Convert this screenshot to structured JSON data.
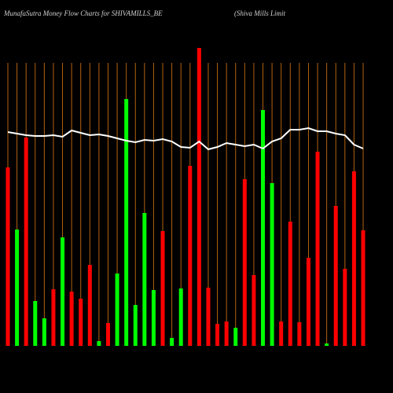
{
  "chart_data": {
    "type": "bar",
    "title": "MunafaSutra  Money Flow  Charts for SHIVAMILLS_BE",
    "subtitle": "(Shiva  Mills Limit",
    "categories": [
      null,
      null,
      null,
      null,
      null,
      null,
      null,
      null,
      null,
      null,
      null,
      null,
      null,
      null,
      null,
      null,
      null,
      null,
      null,
      null,
      null,
      null,
      null,
      null,
      null,
      null,
      null,
      null,
      null,
      null,
      null,
      null,
      null,
      null,
      null,
      null,
      null,
      null,
      null,
      null
    ],
    "series": [
      {
        "type": "bar",
        "colors": [
          "#ff0000",
          "#00ff00",
          "#ff0000",
          "#00ff00",
          "#00ff00",
          "#ff0000",
          "#00ff00",
          "#ff0000",
          "#ff0000",
          "#ff0000",
          "#00ff00",
          "#ff0000",
          "#00ff00",
          "#00ff00",
          "#00ff00",
          "#00ff00",
          "#00ff00",
          "#ff0000",
          "#00ff00",
          "#00ff00",
          "#ff0000",
          "#ff0000",
          "#ff0000",
          "#ff0000",
          "#ff0000",
          "#00ff00",
          "#ff0000",
          "#ff0000",
          "#00ff00",
          "#00ff00",
          "#ff0000",
          "#ff0000",
          "#ff0000",
          "#ff0000",
          "#ff0000",
          "#00ff00",
          "#ff0000",
          "#ff0000",
          "#ff0000",
          "#ff0000"
        ],
        "values": [
          227,
          148,
          265,
          57,
          35,
          72,
          138,
          69,
          60,
          103,
          6,
          29,
          92,
          314,
          52,
          169,
          71,
          146,
          10,
          73,
          229,
          379,
          74,
          28,
          31,
          23,
          212,
          90,
          300,
          207,
          31,
          158,
          30,
          112,
          247,
          3,
          178,
          98,
          222,
          147
        ]
      },
      {
        "type": "line",
        "color": "#ffffff",
        "values": [
          272,
          270,
          268,
          267,
          267,
          268,
          266,
          274,
          271,
          268,
          269,
          267,
          264,
          261,
          259,
          262,
          261,
          263,
          260,
          253,
          252,
          260,
          250,
          253,
          258,
          256,
          254,
          256,
          251,
          260,
          264,
          275,
          275,
          277,
          273,
          273,
          270,
          268,
          256,
          251
        ]
      }
    ],
    "ylim": [
      0,
      380
    ],
    "grid": true,
    "grid_color": "#b5620f"
  }
}
